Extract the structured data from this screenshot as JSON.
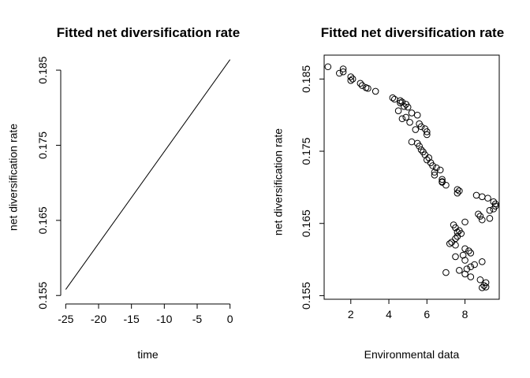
{
  "chart_data": [
    {
      "type": "line",
      "title": "Fitted net diversification rate",
      "xlabel": "time",
      "ylabel": "net diversification rate",
      "xlim": [
        -26,
        1
      ],
      "ylim": [
        0.1545,
        0.187
      ],
      "x_ticks": [
        -25,
        -20,
        -15,
        -10,
        -5,
        0
      ],
      "y_ticks": [
        0.155,
        0.165,
        0.175,
        0.185
      ],
      "frame": "bottom-left axes only",
      "series": [
        {
          "x": [
            -25,
            0
          ],
          "y": [
            0.1558,
            0.1864
          ]
        }
      ]
    },
    {
      "type": "scatter",
      "title": "Fitted net diversification rate",
      "xlabel": "Environmental data",
      "ylabel": "net diversification rate",
      "xlim": [
        0.6,
        9.8
      ],
      "ylim": [
        0.1545,
        0.187
      ],
      "x_ticks": [
        2,
        4,
        6,
        8
      ],
      "y_ticks": [
        0.155,
        0.165,
        0.175,
        0.185
      ],
      "frame": "box",
      "marker": "open circle",
      "points": [
        [
          0.8,
          0.1867
        ],
        [
          1.4,
          0.1858
        ],
        [
          1.6,
          0.1864
        ],
        [
          1.6,
          0.186
        ],
        [
          2.0,
          0.1853
        ],
        [
          2.1,
          0.185
        ],
        [
          2.0,
          0.1848
        ],
        [
          2.5,
          0.1844
        ],
        [
          2.6,
          0.1841
        ],
        [
          2.8,
          0.1838
        ],
        [
          2.9,
          0.1837
        ],
        [
          3.3,
          0.1833
        ],
        [
          4.2,
          0.1824
        ],
        [
          4.3,
          0.1822
        ],
        [
          4.6,
          0.182
        ],
        [
          4.7,
          0.1818
        ],
        [
          4.9,
          0.1815
        ],
        [
          4.6,
          0.1817
        ],
        [
          4.8,
          0.1812
        ],
        [
          5.0,
          0.1811
        ],
        [
          4.5,
          0.1806
        ],
        [
          5.2,
          0.1803
        ],
        [
          4.7,
          0.1795
        ],
        [
          4.9,
          0.1797
        ],
        [
          5.5,
          0.18
        ],
        [
          5.1,
          0.179
        ],
        [
          5.6,
          0.1788
        ],
        [
          5.7,
          0.1784
        ],
        [
          5.4,
          0.178
        ],
        [
          5.9,
          0.1781
        ],
        [
          6.0,
          0.1777
        ],
        [
          6.0,
          0.1773
        ],
        [
          5.2,
          0.1763
        ],
        [
          5.5,
          0.1761
        ],
        [
          5.6,
          0.1757
        ],
        [
          5.7,
          0.1752
        ],
        [
          5.8,
          0.1749
        ],
        [
          5.9,
          0.1745
        ],
        [
          6.1,
          0.1741
        ],
        [
          6.0,
          0.1738
        ],
        [
          6.2,
          0.1734
        ],
        [
          6.3,
          0.173
        ],
        [
          6.5,
          0.1727
        ],
        [
          6.7,
          0.1724
        ],
        [
          6.4,
          0.1721
        ],
        [
          6.4,
          0.1717
        ],
        [
          6.8,
          0.1711
        ],
        [
          6.8,
          0.1707
        ],
        [
          7.0,
          0.1703
        ],
        [
          6.8,
          0.1708
        ],
        [
          7.6,
          0.1697
        ],
        [
          7.7,
          0.1695
        ],
        [
          7.6,
          0.1692
        ],
        [
          8.6,
          0.1689
        ],
        [
          8.9,
          0.1687
        ],
        [
          9.2,
          0.1685
        ],
        [
          9.5,
          0.168
        ],
        [
          9.6,
          0.1677
        ],
        [
          9.6,
          0.1674
        ],
        [
          9.5,
          0.167
        ],
        [
          9.3,
          0.1668
        ],
        [
          8.7,
          0.1663
        ],
        [
          8.8,
          0.166
        ],
        [
          8.9,
          0.1655
        ],
        [
          9.3,
          0.1657
        ],
        [
          8.0,
          0.1652
        ],
        [
          7.4,
          0.1648
        ],
        [
          7.5,
          0.1644
        ],
        [
          7.7,
          0.164
        ],
        [
          7.8,
          0.1636
        ],
        [
          7.6,
          0.1638
        ],
        [
          7.6,
          0.1632
        ],
        [
          7.5,
          0.1629
        ],
        [
          7.3,
          0.1624
        ],
        [
          7.2,
          0.1622
        ],
        [
          7.5,
          0.162
        ],
        [
          8.0,
          0.1615
        ],
        [
          8.2,
          0.1612
        ],
        [
          8.3,
          0.1609
        ],
        [
          7.9,
          0.1606
        ],
        [
          7.5,
          0.1604
        ],
        [
          8.0,
          0.1599
        ],
        [
          8.9,
          0.1597
        ],
        [
          8.5,
          0.1593
        ],
        [
          8.3,
          0.159
        ],
        [
          8.1,
          0.1587
        ],
        [
          7.7,
          0.1585
        ],
        [
          7.0,
          0.1582
        ],
        [
          8.0,
          0.158
        ],
        [
          8.3,
          0.1576
        ],
        [
          8.8,
          0.1572
        ],
        [
          9.1,
          0.1568
        ],
        [
          9.0,
          0.1564
        ],
        [
          9.1,
          0.1562
        ],
        [
          8.9,
          0.1561
        ]
      ]
    }
  ]
}
